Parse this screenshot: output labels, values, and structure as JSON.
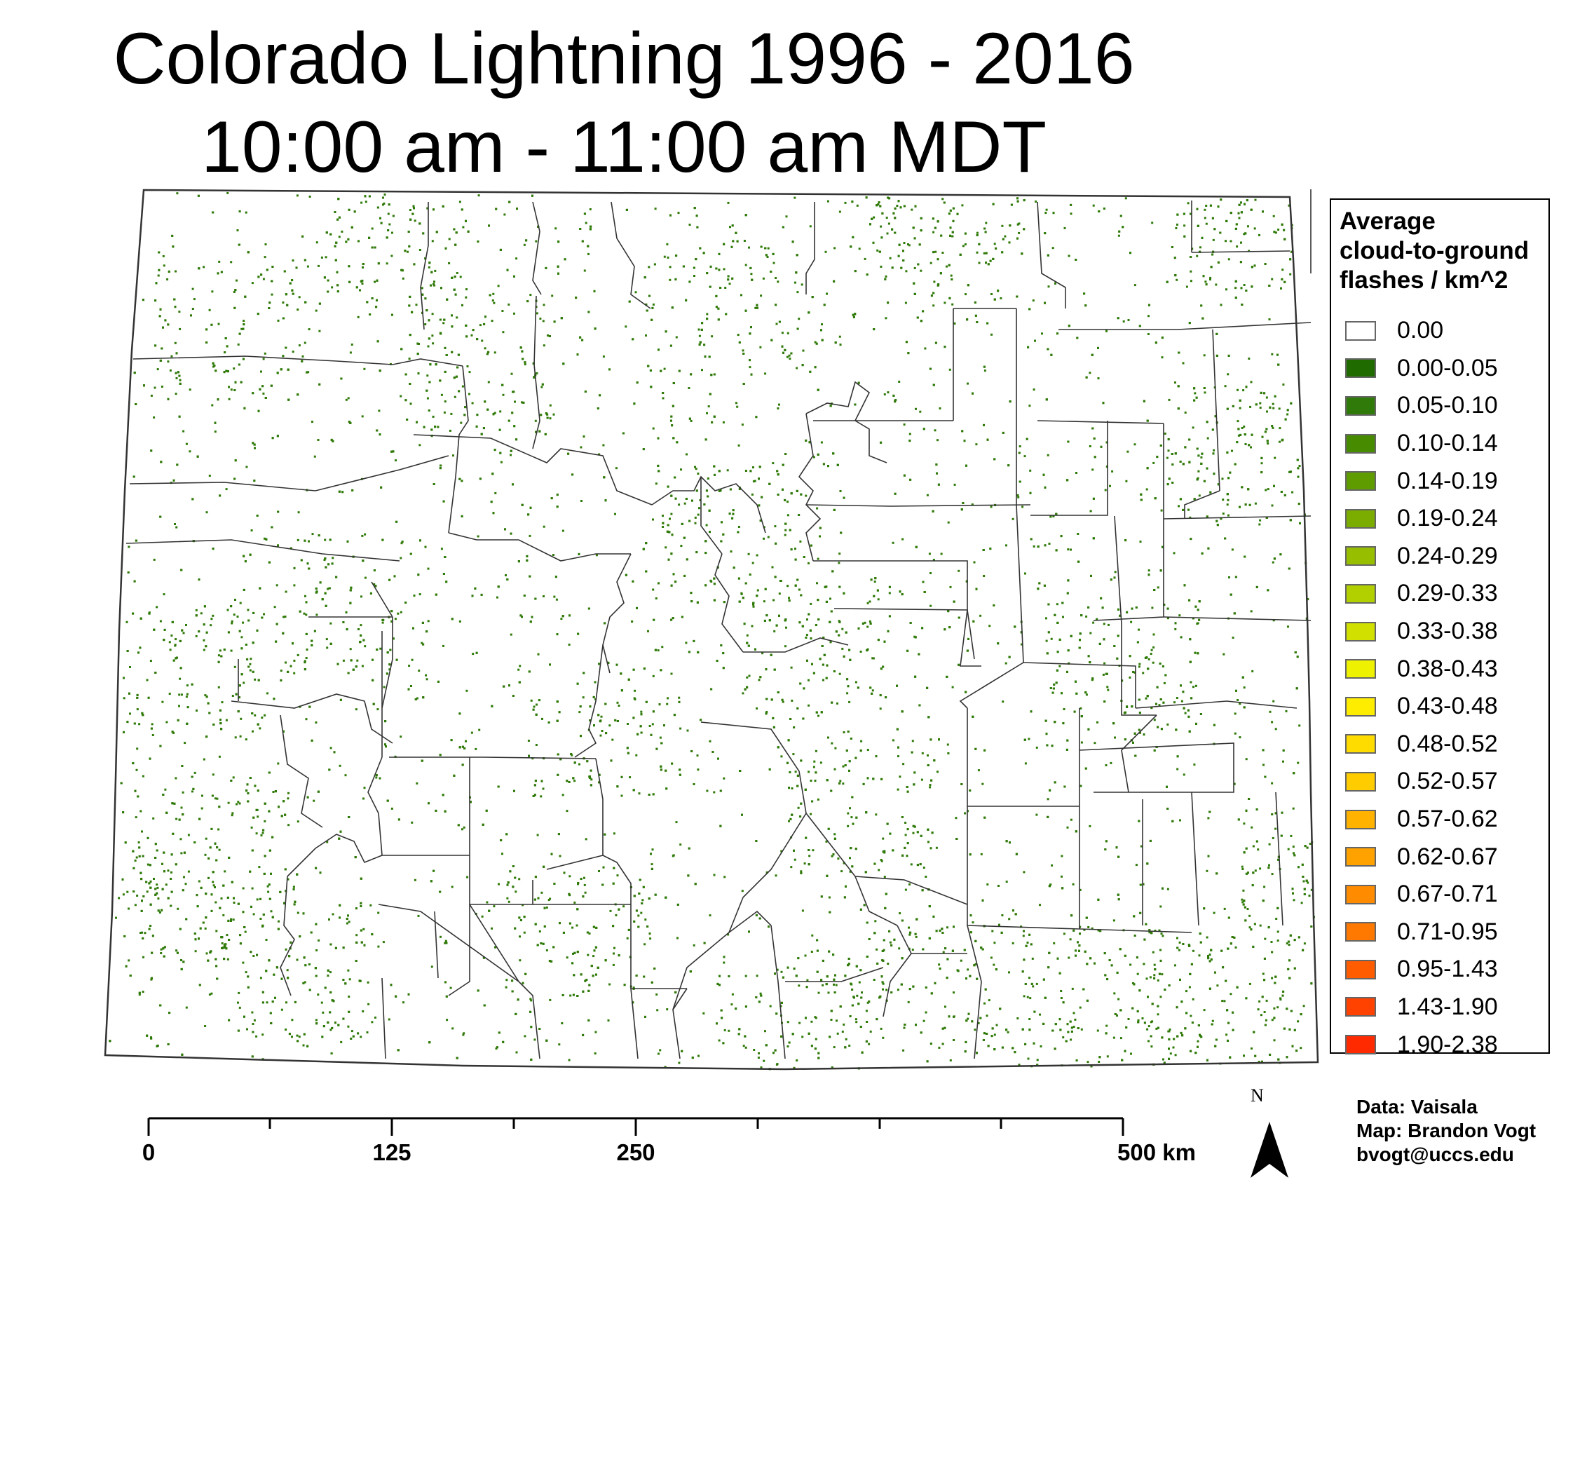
{
  "title": {
    "line1": "Colorado Lightning 1996 - 2016",
    "line2": "10:00 am - 11:00 am MDT"
  },
  "legend": {
    "title_lines": [
      "Average",
      "cloud-to-ground",
      "flashes / km^2"
    ],
    "items": [
      {
        "label": "0.00",
        "color": "#ffffff"
      },
      {
        "label": "0.00-0.05",
        "color": "#1f6b00"
      },
      {
        "label": "0.05-0.10",
        "color": "#2f7a08"
      },
      {
        "label": "0.10-0.14",
        "color": "#478c00"
      },
      {
        "label": "0.14-0.19",
        "color": "#5e9c00"
      },
      {
        "label": "0.19-0.24",
        "color": "#7aad00"
      },
      {
        "label": "0.24-0.29",
        "color": "#97bf00"
      },
      {
        "label": "0.29-0.33",
        "color": "#b2cf00"
      },
      {
        "label": "0.33-0.38",
        "color": "#d2e000"
      },
      {
        "label": "0.38-0.43",
        "color": "#eef200"
      },
      {
        "label": "0.43-0.48",
        "color": "#ffed00"
      },
      {
        "label": "0.48-0.52",
        "color": "#ffdc00"
      },
      {
        "label": "0.52-0.57",
        "color": "#ffcc00"
      },
      {
        "label": "0.57-0.62",
        "color": "#ffb300"
      },
      {
        "label": "0.62-0.67",
        "color": "#ffa200"
      },
      {
        "label": "0.67-0.71",
        "color": "#ff8c00"
      },
      {
        "label": "0.71-0.95",
        "color": "#ff7800"
      },
      {
        "label": "0.95-1.43",
        "color": "#ff5c00"
      },
      {
        "label": "1.43-1.90",
        "color": "#ff4200"
      },
      {
        "label": "1.90-2.38",
        "color": "#ff2a00"
      }
    ]
  },
  "scale_bar": {
    "labels": [
      "0",
      "125",
      "250",
      "500 km"
    ],
    "values_km": [
      0,
      125,
      250,
      500
    ]
  },
  "north_arrow": {
    "letter": "N",
    "icon": "north-arrow-icon"
  },
  "credits": {
    "data": "Data: Vaisala",
    "map": "Map: Brandon Vogt",
    "email": "bvogt@uccs.edu"
  },
  "map": {
    "region": "Colorado",
    "boundary_color": "#333333",
    "flash_color": "#2f7a08"
  }
}
